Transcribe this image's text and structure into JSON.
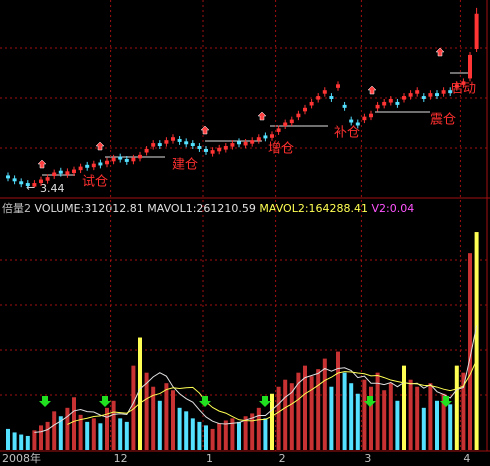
{
  "chart_data": [
    {
      "type": "candlestick",
      "categories": [
        "2008年",
        null,
        null,
        null,
        null,
        null,
        null,
        null,
        null,
        null,
        null,
        null,
        null,
        null,
        null,
        null,
        "12",
        null,
        null,
        null,
        null,
        null,
        null,
        null,
        null,
        null,
        null,
        null,
        null,
        null,
        "1",
        null,
        null,
        null,
        null,
        null,
        null,
        null,
        null,
        null,
        null,
        "2",
        null,
        null,
        null,
        null,
        null,
        null,
        null,
        null,
        null,
        null,
        null,
        null,
        "3",
        null,
        null,
        null,
        null,
        null,
        null,
        null,
        null,
        null,
        null,
        null,
        null,
        null,
        null,
        "4",
        null,
        null
      ],
      "open": [
        3.65,
        3.6,
        3.55,
        3.52,
        3.46,
        3.52,
        3.56,
        3.64,
        3.73,
        3.66,
        3.69,
        3.74,
        3.83,
        3.79,
        3.87,
        3.84,
        3.89,
        3.97,
        3.93,
        3.89,
        3.94,
        4.04,
        4.14,
        4.2,
        4.19,
        4.24,
        4.27,
        4.23,
        4.2,
        4.15,
        4.1,
        4.02,
        4.06,
        4.09,
        4.14,
        4.23,
        4.16,
        4.19,
        4.24,
        4.33,
        4.29,
        4.39,
        4.49,
        4.54,
        4.64,
        4.74,
        4.84,
        4.94,
        5.04,
        5.0,
        5.14,
        4.85,
        4.6,
        4.55,
        4.59,
        4.64,
        4.79,
        4.84,
        4.89,
        4.9,
        4.94,
        4.99,
        5.04,
        5.0,
        4.99,
        5.05,
        5.04,
        5.1,
        5.14,
        5.19,
        5.3,
        5.8
      ],
      "high": [
        3.7,
        3.65,
        3.6,
        3.57,
        3.57,
        3.63,
        3.67,
        3.75,
        3.78,
        3.77,
        3.8,
        3.85,
        3.88,
        3.9,
        3.92,
        3.95,
        4.0,
        4.02,
        3.98,
        4.0,
        4.05,
        4.15,
        4.25,
        4.25,
        4.3,
        4.35,
        4.32,
        4.28,
        4.25,
        4.2,
        4.15,
        4.13,
        4.17,
        4.2,
        4.25,
        4.28,
        4.27,
        4.3,
        4.35,
        4.38,
        4.4,
        4.5,
        4.6,
        4.65,
        4.75,
        4.85,
        4.95,
        5.05,
        5.15,
        5.05,
        5.25,
        4.9,
        4.65,
        4.6,
        4.7,
        4.75,
        4.9,
        4.95,
        5.0,
        4.95,
        5.05,
        5.1,
        5.15,
        5.05,
        5.1,
        5.1,
        5.15,
        5.15,
        5.25,
        5.3,
        5.75,
        6.5
      ],
      "low": [
        3.55,
        3.5,
        3.45,
        3.44,
        3.45,
        3.47,
        3.51,
        3.59,
        3.63,
        3.61,
        3.64,
        3.69,
        3.73,
        3.74,
        3.77,
        3.79,
        3.84,
        3.87,
        3.83,
        3.84,
        3.89,
        3.99,
        4.09,
        4.1,
        4.14,
        4.19,
        4.17,
        4.13,
        4.1,
        4.05,
        4.0,
        3.97,
        4.01,
        4.04,
        4.09,
        4.13,
        4.11,
        4.14,
        4.19,
        4.23,
        4.24,
        4.34,
        4.44,
        4.49,
        4.59,
        4.69,
        4.79,
        4.89,
        4.99,
        4.9,
        5.09,
        4.75,
        4.5,
        4.45,
        4.54,
        4.59,
        4.74,
        4.79,
        4.84,
        4.8,
        4.89,
        4.94,
        4.99,
        4.9,
        4.94,
        4.95,
        4.99,
        5.0,
        5.09,
        5.14,
        5.25,
        5.75
      ],
      "close": [
        3.6,
        3.55,
        3.5,
        3.47,
        3.52,
        3.58,
        3.62,
        3.7,
        3.68,
        3.72,
        3.75,
        3.8,
        3.78,
        3.85,
        3.82,
        3.9,
        3.95,
        3.92,
        3.88,
        3.95,
        4.0,
        4.1,
        4.2,
        4.15,
        4.25,
        4.3,
        4.22,
        4.18,
        4.15,
        4.1,
        4.05,
        4.08,
        4.12,
        4.15,
        4.2,
        4.18,
        4.22,
        4.25,
        4.3,
        4.28,
        4.35,
        4.45,
        4.55,
        4.6,
        4.7,
        4.8,
        4.9,
        5.0,
        5.1,
        4.95,
        5.2,
        4.8,
        4.55,
        4.5,
        4.65,
        4.7,
        4.85,
        4.9,
        4.95,
        4.85,
        5.0,
        5.05,
        5.1,
        4.95,
        5.05,
        5.0,
        5.1,
        5.05,
        5.2,
        5.25,
        5.7,
        6.4
      ],
      "ylim": [
        3.3,
        6.6
      ],
      "up_color": "#ff3434",
      "down_color": "#54e0ff",
      "low_label": 3.44,
      "annotations": [
        "试仓",
        "建仓",
        "增仓",
        "补仓",
        "震仓",
        "启动"
      ]
    },
    {
      "type": "bar",
      "title_parts": [
        {
          "text": "倍量2",
          "color": "#c0c0c0"
        },
        {
          "text": "VOLUME:312012.81",
          "color": "#e0e0e0"
        },
        {
          "text": "MAVOL1:261210.59",
          "color": "#e0e0e0"
        },
        {
          "text": "MAVOL2:164288.41",
          "color": "#ffff54"
        },
        {
          "text": "V2:0.04",
          "color": "#ff54ff"
        }
      ],
      "values": [
        30000,
        25000,
        22000,
        20000,
        28000,
        35000,
        40000,
        55000,
        48000,
        60000,
        75000,
        50000,
        40000,
        45000,
        38000,
        60000,
        70000,
        45000,
        40000,
        120000,
        160000,
        110000,
        90000,
        70000,
        95000,
        85000,
        60000,
        55000,
        45000,
        40000,
        35000,
        30000,
        38000,
        42000,
        45000,
        40000,
        48000,
        52000,
        60000,
        45000,
        80000,
        90000,
        100000,
        95000,
        110000,
        120000,
        105000,
        115000,
        130000,
        90000,
        140000,
        110000,
        95000,
        80000,
        100000,
        90000,
        110000,
        85000,
        95000,
        70000,
        120000,
        100000,
        90000,
        60000,
        95000,
        70000,
        80000,
        65000,
        120000,
        110000,
        280000,
        310000
      ],
      "colors": [
        "#54e0ff",
        "#54e0ff",
        "#54e0ff",
        "#54e0ff",
        "#c83232",
        "#c83232",
        "#c83232",
        "#c83232",
        "#54e0ff",
        "#c83232",
        "#c83232",
        "#c83232",
        "#54e0ff",
        "#c83232",
        "#54e0ff",
        "#c83232",
        "#c83232",
        "#54e0ff",
        "#54e0ff",
        "#c83232",
        "#ffff54",
        "#c83232",
        "#c83232",
        "#54e0ff",
        "#c83232",
        "#c83232",
        "#54e0ff",
        "#54e0ff",
        "#54e0ff",
        "#54e0ff",
        "#54e0ff",
        "#c83232",
        "#c83232",
        "#c83232",
        "#c83232",
        "#54e0ff",
        "#c83232",
        "#c83232",
        "#c83232",
        "#54e0ff",
        "#ffff54",
        "#c83232",
        "#c83232",
        "#c83232",
        "#c83232",
        "#c83232",
        "#c83232",
        "#c83232",
        "#c83232",
        "#54e0ff",
        "#c83232",
        "#54e0ff",
        "#54e0ff",
        "#54e0ff",
        "#c83232",
        "#c83232",
        "#c83232",
        "#c83232",
        "#c83232",
        "#54e0ff",
        "#ffff54",
        "#c83232",
        "#c83232",
        "#54e0ff",
        "#c83232",
        "#54e0ff",
        "#c83232",
        "#54e0ff",
        "#ffff54",
        "#c83232",
        "#c83232",
        "#ffff54"
      ],
      "ylim": [
        0,
        330000
      ]
    }
  ]
}
